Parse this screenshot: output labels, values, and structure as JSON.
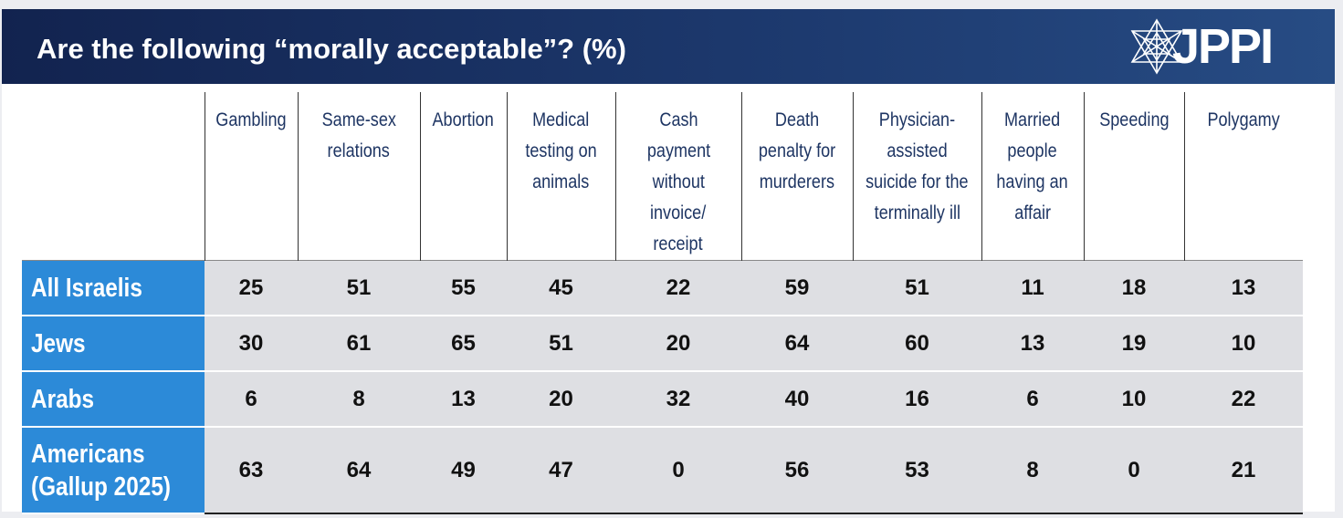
{
  "title": "Are the following “morally acceptable”? (%)",
  "logo": {
    "text": "JPPI",
    "icon": "star-of-david-icon"
  },
  "colors": {
    "header": "#1d3a6f",
    "row_label": "#2c8ad8",
    "cell": "#dedfe3",
    "header_text": "#1e3563"
  },
  "chart_data": {
    "type": "table",
    "columns": [
      "Gambling",
      "Same-sex relations",
      "Abortion",
      "Medical testing on animals",
      "Cash payment without invoice/ receipt",
      "Death penalty for murderers",
      "Physician- assisted suicide for the terminally ill",
      "Married people having an affair",
      "Speeding",
      "Polygamy"
    ],
    "column_lines": [
      [
        "Gambling"
      ],
      [
        "Same-sex",
        "relations"
      ],
      [
        "Abortion"
      ],
      [
        "Medical",
        "testing on",
        "animals"
      ],
      [
        "Cash payment",
        "without",
        "invoice/",
        "receipt"
      ],
      [
        "Death",
        "penalty for",
        "murderers"
      ],
      [
        "Physician-",
        "assisted",
        "suicide for the",
        "terminally ill"
      ],
      [
        "Married",
        "people",
        "having an",
        "affair"
      ],
      [
        "Speeding"
      ],
      [
        "Polygamy"
      ]
    ],
    "rows": [
      {
        "label": [
          "All Israelis"
        ],
        "values": [
          25,
          51,
          55,
          45,
          22,
          59,
          51,
          11,
          18,
          13
        ]
      },
      {
        "label": [
          "Jews"
        ],
        "values": [
          30,
          61,
          65,
          51,
          20,
          64,
          60,
          13,
          19,
          10
        ]
      },
      {
        "label": [
          "Arabs"
        ],
        "values": [
          6,
          8,
          13,
          20,
          32,
          40,
          16,
          6,
          10,
          22
        ]
      },
      {
        "label": [
          "Americans",
          "(Gallup 2025)"
        ],
        "values": [
          63,
          64,
          49,
          47,
          0,
          56,
          53,
          8,
          0,
          21
        ]
      }
    ]
  }
}
